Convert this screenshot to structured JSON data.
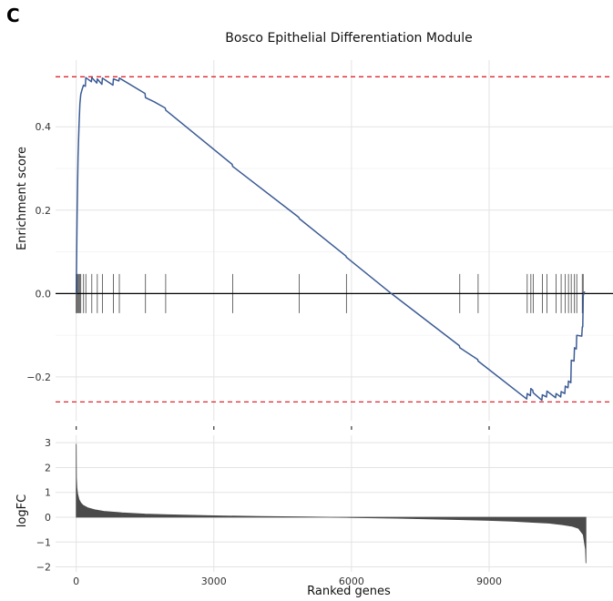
{
  "panel_label": "C",
  "chart_data": [
    {
      "type": "line",
      "title": "Bosco Epithelial Differentiation Module",
      "xlabel": "",
      "ylabel": "Enrichment score",
      "xlim": [
        -450,
        11700
      ],
      "ylim": [
        -0.305,
        0.56
      ],
      "yticks": [
        -0.2,
        0.0,
        0.2,
        0.4
      ],
      "ytick_labels": [
        "−0.2",
        "0.0",
        "0.2",
        "0.4"
      ],
      "xticks_marks": [
        0,
        3000,
        6000,
        9000
      ],
      "grid": true,
      "max_es": 0.52,
      "min_es": -0.26,
      "colors": {
        "line": "#3b5b95",
        "hits": "#444444",
        "dashed": "#e0262c",
        "zero": "#000000",
        "grid": "#e3e3e3"
      },
      "series": [
        {
          "x": [
            0,
            20,
            40,
            60,
            80,
            100,
            130,
            160,
            200,
            210,
            330,
            340,
            450,
            460,
            560,
            570,
            800,
            810,
            930,
            940,
            1500,
            1510,
            1700,
            1940,
            1950,
            3400,
            3410,
            4850,
            4860,
            5880,
            5890,
            6870,
            8350,
            8360,
            8750,
            8760,
            9820,
            9830,
            9900,
            9910,
            9950,
            9960,
            10150,
            10160,
            10250,
            10260,
            10450,
            10460,
            10560,
            10570,
            10650,
            10660,
            10720,
            10730,
            10780,
            10790,
            10850,
            10860,
            10900,
            10910,
            11020,
            11030,
            11040,
            11050,
            11080
          ],
          "y": [
            0.0,
            0.2,
            0.33,
            0.4,
            0.455,
            0.478,
            0.49,
            0.5,
            0.497,
            0.518,
            0.508,
            0.518,
            0.505,
            0.515,
            0.502,
            0.517,
            0.5,
            0.515,
            0.51,
            0.517,
            0.48,
            0.47,
            0.46,
            0.445,
            0.44,
            0.31,
            0.305,
            0.183,
            0.18,
            0.09,
            0.087,
            0.0,
            -0.125,
            -0.13,
            -0.158,
            -0.162,
            -0.253,
            -0.24,
            -0.245,
            -0.228,
            -0.232,
            -0.238,
            -0.256,
            -0.243,
            -0.248,
            -0.234,
            -0.25,
            -0.24,
            -0.248,
            -0.235,
            -0.24,
            -0.222,
            -0.226,
            -0.21,
            -0.214,
            -0.16,
            -0.162,
            -0.13,
            -0.133,
            -0.1,
            -0.102,
            -0.08,
            -0.08,
            -0.005,
            0.005
          ]
        }
      ],
      "hits": [
        0,
        20,
        40,
        60,
        80,
        100,
        160,
        210,
        340,
        460,
        570,
        810,
        940,
        1510,
        1950,
        3410,
        4860,
        5890,
        8360,
        8760,
        9830,
        9910,
        9960,
        10160,
        10260,
        10460,
        10570,
        10660,
        10730,
        10790,
        10860,
        10910,
        11030,
        11050
      ]
    },
    {
      "type": "area",
      "title": "",
      "xlabel": "Ranked genes",
      "ylabel": "logFC",
      "xlim": [
        -450,
        11700
      ],
      "ylim": [
        -2.2,
        3.3
      ],
      "yticks": [
        -2,
        -1,
        0,
        1,
        2,
        3
      ],
      "ytick_labels": [
        "−2",
        "−1",
        "0",
        "1",
        "2",
        "3"
      ],
      "xticks": [
        0,
        3000,
        6000,
        9000
      ],
      "xtick_labels": [
        "0",
        "3000",
        "6000",
        "9000"
      ],
      "grid": true,
      "colors": {
        "fill": "#4a4a4a",
        "grid": "#e3e3e3"
      },
      "series": [
        {
          "x": [
            0,
            5,
            15,
            30,
            60,
            100,
            150,
            250,
            400,
            600,
            1000,
            1500,
            2000,
            3000,
            4000,
            5000,
            6000,
            7000,
            8000,
            9000,
            9500,
            10000,
            10300,
            10600,
            10800,
            10950,
            11050,
            11100,
            11110
          ],
          "y": [
            2.95,
            1.6,
            1.2,
            0.95,
            0.72,
            0.58,
            0.48,
            0.38,
            0.3,
            0.24,
            0.18,
            0.13,
            0.1,
            0.06,
            0.03,
            0.01,
            -0.01,
            -0.04,
            -0.08,
            -0.13,
            -0.16,
            -0.21,
            -0.24,
            -0.3,
            -0.36,
            -0.45,
            -0.7,
            -1.3,
            -1.85
          ]
        }
      ]
    }
  ]
}
